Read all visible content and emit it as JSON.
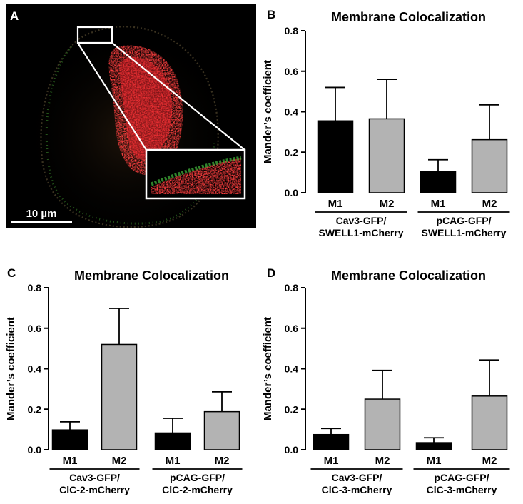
{
  "micrograph": {
    "letter": "A",
    "scale_bar_label": "10 µm"
  },
  "chart_data": [
    {
      "panel": "B",
      "type": "bar",
      "title": "Membrane Colocalization",
      "ylabel": "Mander’s coefficient",
      "xlabel": "",
      "ylim": [
        0,
        0.8
      ],
      "yticks": [
        "0.0",
        "0.2",
        "0.4",
        "0.6",
        "0.8"
      ],
      "bar_labels": [
        "M1",
        "M2",
        "M1",
        "M2"
      ],
      "groups": [
        {
          "line1": "Cav3-GFP/",
          "line2": "SWELL1-mCherry"
        },
        {
          "line1": "pCAG-GFP/",
          "line2": "SWELL1-mCherry"
        }
      ],
      "values": [
        0.355,
        0.365,
        0.105,
        0.262
      ],
      "errors": [
        0.165,
        0.195,
        0.058,
        0.172
      ],
      "bar_colors": [
        "#000000",
        "#b3b3b3",
        "#000000",
        "#b3b3b3"
      ]
    },
    {
      "panel": "C",
      "type": "bar",
      "title": "Membrane Colocalization",
      "ylabel": "Mander’s coefficient",
      "xlabel": "",
      "ylim": [
        0,
        0.8
      ],
      "yticks": [
        "0.0",
        "0.2",
        "0.4",
        "0.6",
        "0.8"
      ],
      "bar_labels": [
        "M1",
        "M2",
        "M1",
        "M2"
      ],
      "groups": [
        {
          "line1": "Cav3-GFP/",
          "line2": "ClC-2-mCherry"
        },
        {
          "line1": "pCAG-GFP/",
          "line2": "ClC-2-mCherry"
        }
      ],
      "values": [
        0.098,
        0.52,
        0.083,
        0.188
      ],
      "errors": [
        0.04,
        0.178,
        0.072,
        0.098
      ],
      "bar_colors": [
        "#000000",
        "#b3b3b3",
        "#000000",
        "#b3b3b3"
      ]
    },
    {
      "panel": "D",
      "type": "bar",
      "title": "Membrane Colocalization",
      "ylabel": "Mander’s coefficient",
      "xlabel": "",
      "ylim": [
        0,
        0.8
      ],
      "yticks": [
        "0.0",
        "0.2",
        "0.4",
        "0.6",
        "0.8"
      ],
      "bar_labels": [
        "M1",
        "M2",
        "M1",
        "M2"
      ],
      "groups": [
        {
          "line1": "Cav3-GFP/",
          "line2": "ClC-3-mCherry"
        },
        {
          "line1": "pCAG-GFP/",
          "line2": "ClC-3-mCherry"
        }
      ],
      "values": [
        0.075,
        0.25,
        0.035,
        0.265
      ],
      "errors": [
        0.03,
        0.142,
        0.024,
        0.178
      ],
      "bar_colors": [
        "#000000",
        "#b3b3b3",
        "#000000",
        "#b3b3b3"
      ]
    }
  ]
}
